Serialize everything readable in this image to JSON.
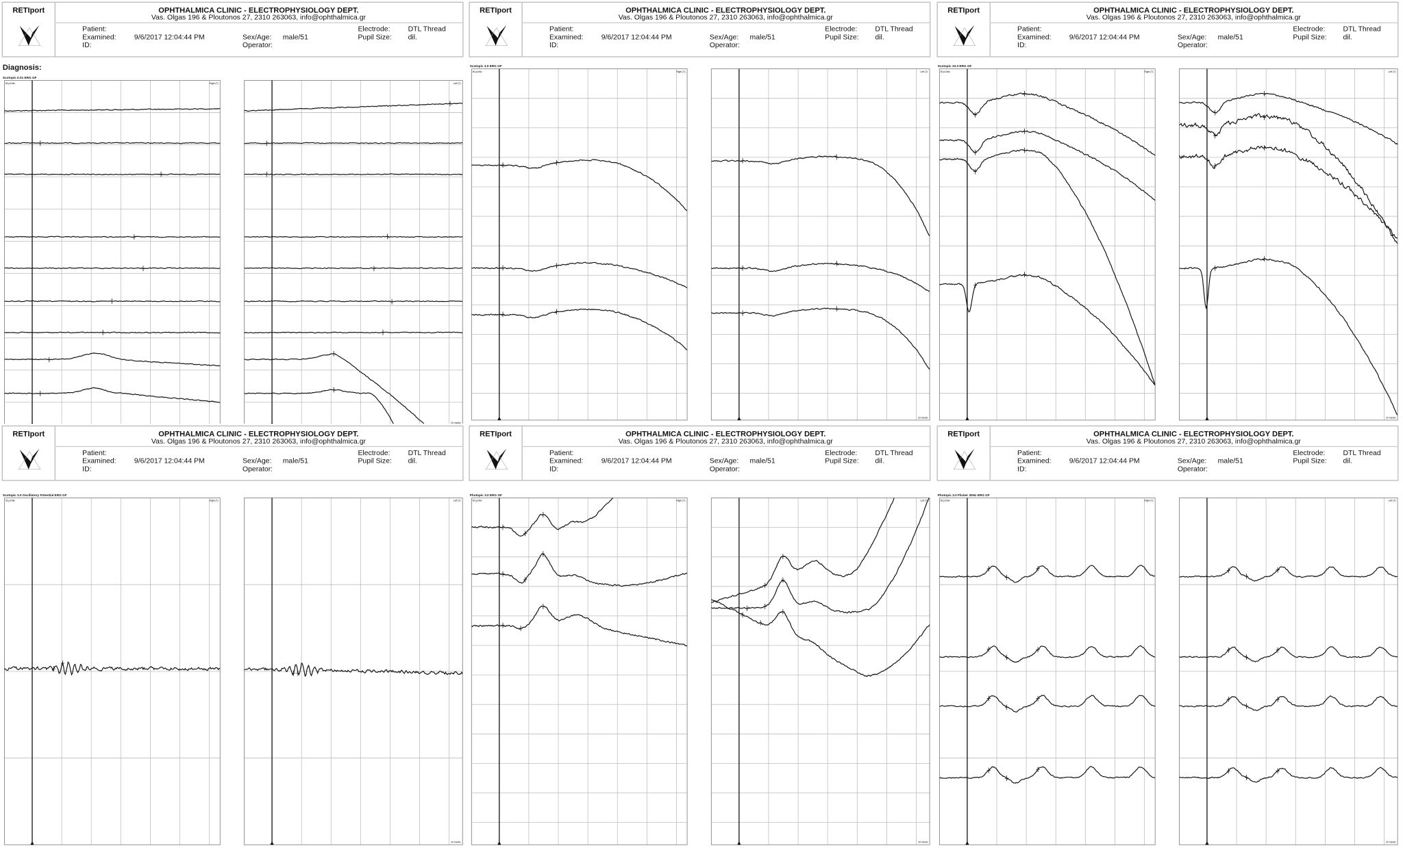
{
  "header": {
    "brand": "RETIport",
    "clinic": "OPHTHALMICA CLINIC - ELECTROPHYSIOLOGY DEPT.",
    "address": "Vas. Olgas 196 & Ploutonos 27, 2310 263063, info@ophthalmica.gr",
    "patient_label": "Patient:",
    "examined_label": "Examined:",
    "examined_value": "9/6/2017 12:04:44 PM",
    "id_label": "ID:",
    "sex_age_label": "Sex/Age:",
    "sex_age_value": "male/51",
    "operator_label": "Operator:",
    "electrode_label": "Electrode:",
    "electrode_value": "DTL Thread",
    "pupil_label": "Pupil Size:",
    "pupil_value": "dil."
  },
  "diagnosis_label": "Diagnosis:",
  "eye_labels": {
    "right": "Right (T)",
    "left": "Left (T)"
  },
  "amplitude_scale": "50 µV/div",
  "time_scale": "20 ms/div",
  "colors": {
    "trace": "#111111",
    "grid": "#bdbdbd",
    "border": "#bbbbbb"
  },
  "panels": [
    {
      "test": "Scotopic 0.01 ERG GF",
      "trace_count": 9
    },
    {
      "test": "Scotopic 3.0 ERG GF",
      "trace_count": 3
    },
    {
      "test": "Scotopic 10.0 ERG GF",
      "trace_count": 4
    },
    {
      "test": "Scotopic 3.0 Oscillatory Potential ERG GF",
      "trace_count": 1
    },
    {
      "test": "Photopic 3.0 ERG GF",
      "trace_count": 3
    },
    {
      "test": "Photopic 3.0 Flicker 30Hz ERG GF",
      "trace_count": 4
    }
  ]
}
